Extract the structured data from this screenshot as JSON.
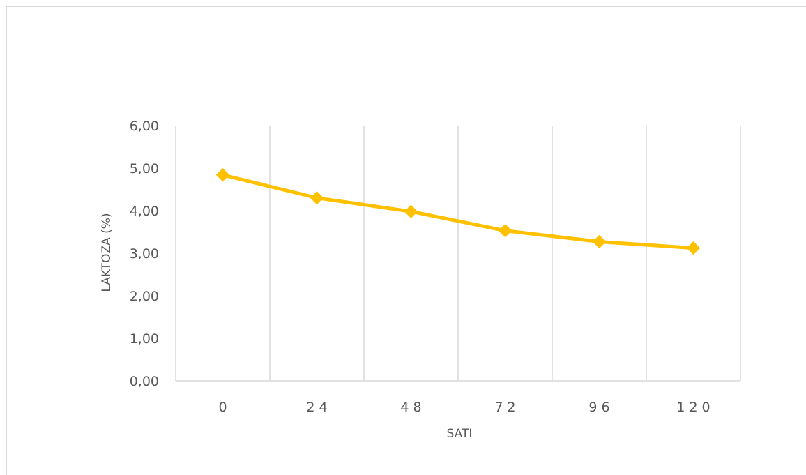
{
  "chart_data": {
    "type": "line",
    "title": "",
    "xlabel": "SATI",
    "ylabel": "LAKTOZA (%)",
    "categories": [
      "0",
      "24",
      "48",
      "72",
      "96",
      "120"
    ],
    "series": [
      {
        "values": [
          4.84,
          4.3,
          3.98,
          3.53,
          3.27,
          3.12
        ],
        "color": "#FFC000",
        "marker": "diamond"
      }
    ],
    "ylim": [
      0,
      6
    ],
    "yticks": [
      "0,00",
      "1,00",
      "2,00",
      "3,00",
      "4,00",
      "5,00",
      "6,00"
    ],
    "grid": "vertical",
    "legend": "none"
  },
  "colors": {
    "line": "#FFC000",
    "grid": "#d9d9d9",
    "text": "#595959"
  }
}
